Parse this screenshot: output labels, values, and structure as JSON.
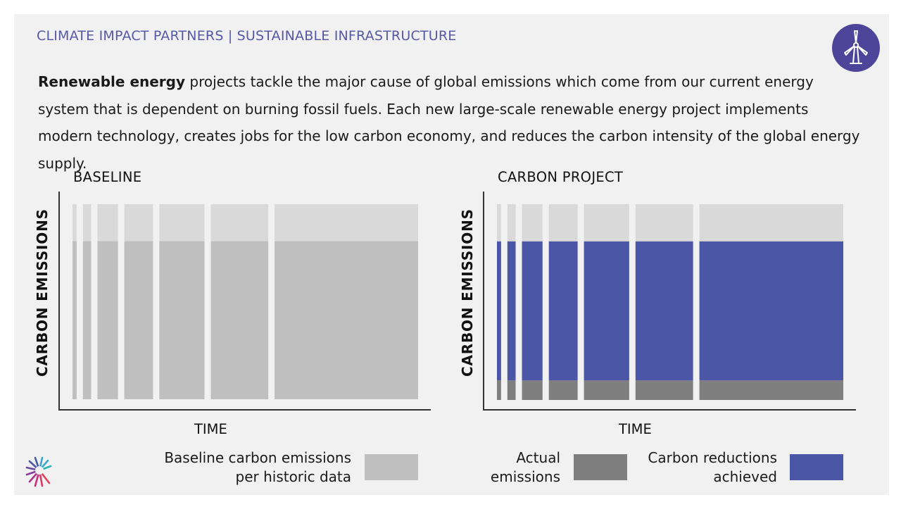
{
  "header": {
    "title": "CLIMATE IMPACT PARTNERS | SUSTAINABLE INFRASTRUCTURE"
  },
  "badge": {
    "icon": "wind-turbine-icon",
    "color": "#4c4599"
  },
  "intro": {
    "bold": "Renewable energy",
    "rest": " projects tackle the major cause of global emissions which come from our current energy system that is dependent on burning fossil fuels. Each new large-scale renewable energy project implements modern technology, creates jobs for the low carbon economy, and reduces the carbon intensity of the global energy supply."
  },
  "chart_data": [
    {
      "type": "bar",
      "title": "BASELINE",
      "xlabel": "TIME",
      "ylabel": "CARBON EMISSIONS",
      "bars": 7,
      "bar_widths_relative": [
        1,
        2,
        5,
        7,
        11,
        14,
        35
      ],
      "baseline_fraction": 0.81,
      "series": [
        {
          "name": "Baseline carbon emissions per historic data",
          "color": "#bfbfbf",
          "values": [
            0.81,
            0.81,
            0.81,
            0.81,
            0.81,
            0.81,
            0.81
          ]
        }
      ],
      "headroom_color": "#d9d9d9",
      "ylim": [
        0,
        1
      ]
    },
    {
      "type": "bar",
      "title": "CARBON PROJECT",
      "xlabel": "TIME",
      "ylabel": "CARBON EMISSIONS",
      "bars": 7,
      "bar_widths_relative": [
        1,
        2,
        5,
        7,
        11,
        14,
        35
      ],
      "series": [
        {
          "name": "Actual emissions",
          "color": "#7f7f7f",
          "values": [
            0.1,
            0.1,
            0.1,
            0.1,
            0.1,
            0.1,
            0.1
          ]
        },
        {
          "name": "Carbon reductions achieved",
          "color": "#4b56a6",
          "values": [
            0.71,
            0.71,
            0.71,
            0.71,
            0.71,
            0.71,
            0.71
          ]
        }
      ],
      "headroom_color": "#d9d9d9",
      "ylim": [
        0,
        1
      ]
    }
  ],
  "legend": {
    "baseline": {
      "line1": "Baseline carbon emissions",
      "line2": "per historic data",
      "color": "#bfbfbf"
    },
    "actual": {
      "line1": "Actual",
      "line2": "emissions",
      "color": "#7f7f7f"
    },
    "reductions": {
      "line1": "Carbon reductions",
      "line2": "achieved",
      "color": "#4b56a6"
    }
  }
}
